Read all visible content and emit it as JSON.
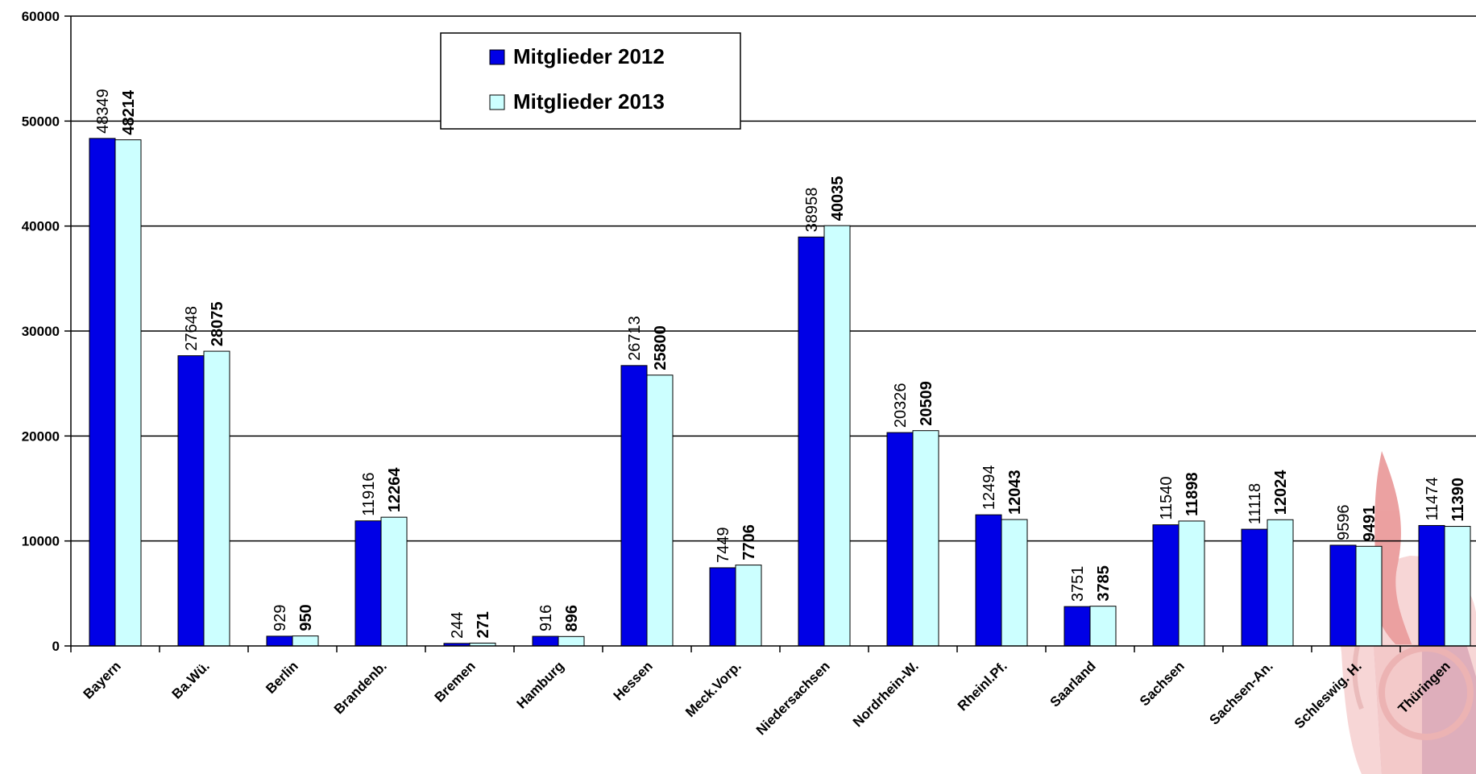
{
  "chart_data": {
    "type": "bar",
    "title": "",
    "xlabel": "",
    "ylabel": "",
    "ylim": [
      0,
      60000
    ],
    "yticks": [
      0,
      10000,
      20000,
      30000,
      40000,
      50000,
      60000
    ],
    "ytick_labels": [
      "0",
      "10000",
      "20000",
      "30000",
      "40000",
      "50000",
      "60000"
    ],
    "grid": true,
    "legend_position": "top-center",
    "categories": [
      "Bayern",
      "Ba.Wü.",
      "Berlin",
      "Brandenb.",
      "Bremen",
      "Hamburg",
      "Hessen",
      "Meck.Vorp.",
      "Niedersachsen",
      "Nordrhein-W.",
      "Rheinl.Pf.",
      "Saarland",
      "Sachsen",
      "Sachsen-An.",
      "Schleswig. H.",
      "Thüringen"
    ],
    "series": [
      {
        "name": "Mitglieder 2012",
        "color": "#0000e6",
        "values": [
          48349,
          27648,
          929,
          11916,
          244,
          916,
          26713,
          7449,
          38958,
          20326,
          12494,
          3751,
          11540,
          11118,
          9596,
          11474
        ]
      },
      {
        "name": "Mitglieder 2013",
        "color": "#ccffff",
        "values": [
          48214,
          28075,
          950,
          12264,
          271,
          896,
          25800,
          7706,
          40035,
          20509,
          12043,
          3785,
          11898,
          12024,
          9491,
          11390
        ]
      }
    ]
  }
}
